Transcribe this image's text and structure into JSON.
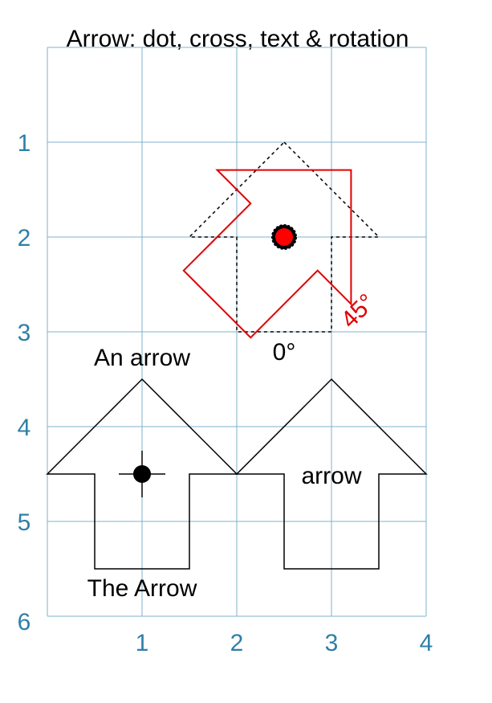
{
  "title": "Arrow: dot, cross, text & rotation",
  "axes": {
    "x_ticks": [
      "1",
      "2",
      "3",
      "4"
    ],
    "y_ticks": [
      "1",
      "2",
      "3",
      "4",
      "5",
      "6"
    ],
    "xlim": [
      0,
      4
    ],
    "ylim": [
      0,
      6
    ],
    "y_direction": "downward",
    "grid": true
  },
  "colors": {
    "grid": "#7fb2cc",
    "ticks": "#2f7fa7",
    "rotated_arrow": "#e00000",
    "dot_fill": "#ff0000",
    "outline": "#000000"
  },
  "labels": {
    "an_arrow": "An arrow",
    "the_arrow": "The Arrow",
    "arrow_inside": "arrow",
    "angle_0": "0°",
    "angle_45": "45°"
  },
  "shapes": {
    "arrow_with_cross": {
      "pivot": [
        1,
        4.5
      ],
      "rotation_deg": 0,
      "style": "solid",
      "marker": "dot-and-cross"
    },
    "arrow_with_text": {
      "pivot": [
        3,
        4.5
      ],
      "rotation_deg": 0,
      "style": "solid",
      "marker": "none"
    },
    "arrow_reference": {
      "pivot": [
        2.5,
        2
      ],
      "rotation_deg": 0,
      "style": "dashed",
      "marker": "dot"
    },
    "arrow_rotated": {
      "pivot": [
        2.5,
        2
      ],
      "rotation_deg": 45,
      "style": "solid-red",
      "marker": "dot"
    }
  }
}
